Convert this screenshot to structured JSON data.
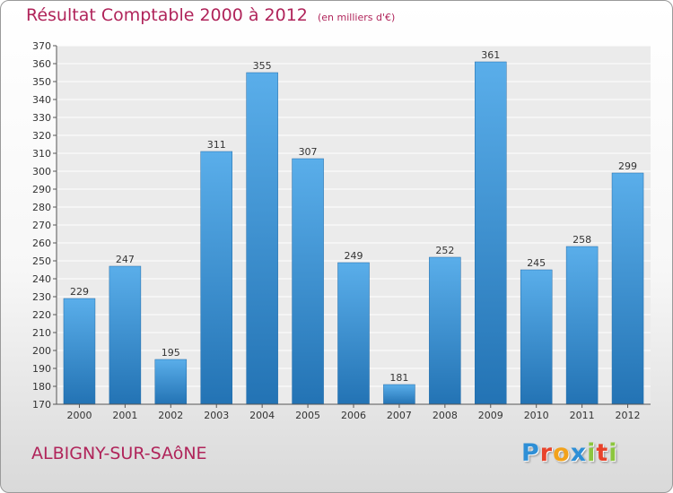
{
  "header": {
    "title": "Résultat Comptable 2000 à 2012",
    "subtitle": "(en milliers d'€)"
  },
  "footer": {
    "city": "ALBIGNY-SUR-SAôNE",
    "logo_letters": [
      "P",
      "r",
      "o",
      "x",
      "i",
      "t",
      "i"
    ],
    "logo_colors": [
      "#2e8fd6",
      "#e8432b",
      "#f2a21b",
      "#2e8fd6",
      "#8cc63e",
      "#e8432b",
      "#8cc63e"
    ]
  },
  "chart_data": {
    "type": "bar",
    "categories": [
      "2000",
      "2001",
      "2002",
      "2003",
      "2004",
      "2005",
      "2006",
      "2007",
      "2008",
      "2009",
      "2010",
      "2011",
      "2012"
    ],
    "values": [
      229,
      247,
      195,
      311,
      355,
      307,
      249,
      181,
      252,
      361,
      245,
      258,
      299
    ],
    "value_labels": [
      "229",
      "247",
      "195",
      "311",
      "355",
      "307",
      "249",
      "181",
      "252",
      "361",
      "245",
      "258",
      "299"
    ],
    "yticks": [
      "170",
      "180",
      "190",
      "200",
      "210",
      "220",
      "230",
      "240",
      "250",
      "260",
      "270",
      "280",
      "290",
      "300",
      "310",
      "320",
      "330",
      "340",
      "350",
      "360",
      "370"
    ],
    "ylim": [
      170,
      370
    ],
    "grid": true,
    "bar_color": "#3a8fd0"
  }
}
